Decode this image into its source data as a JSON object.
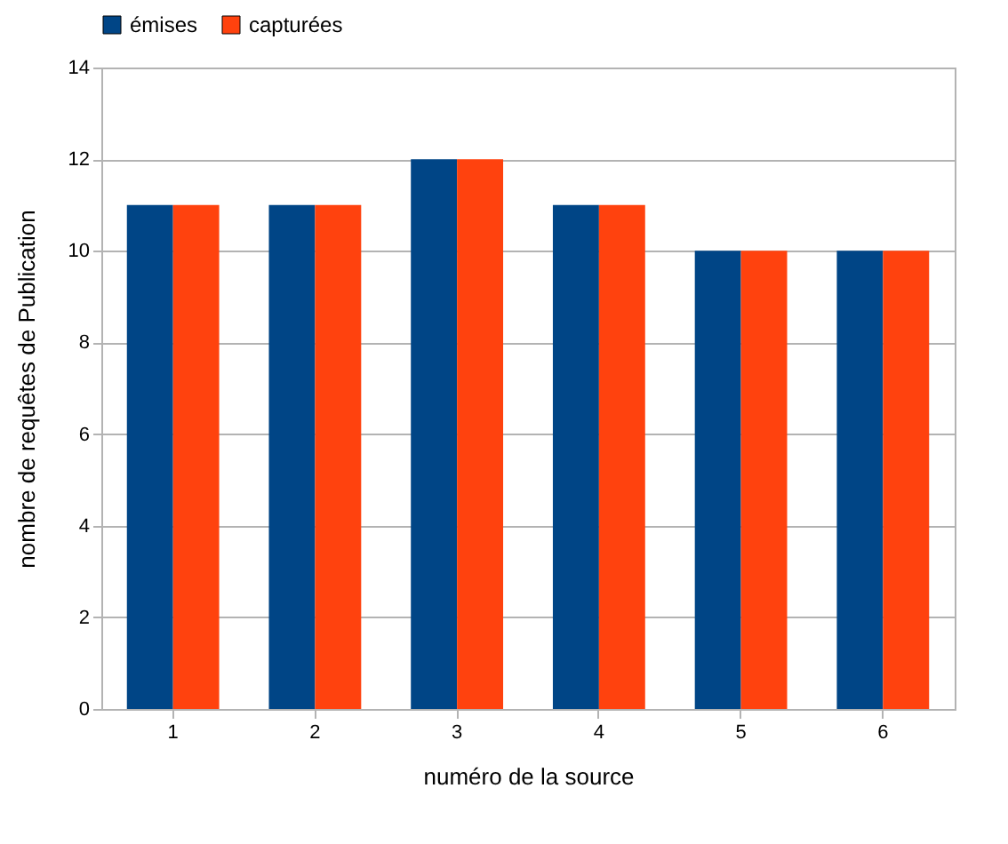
{
  "chart_data": {
    "type": "bar",
    "xlabel": "numéro de la source",
    "ylabel": "nombre de requêtes de Publication",
    "categories": [
      "1",
      "2",
      "3",
      "4",
      "5",
      "6"
    ],
    "series": [
      {
        "name": "émises",
        "color": "#004586",
        "values": [
          11,
          11,
          12,
          11,
          10,
          10
        ]
      },
      {
        "name": "capturées",
        "color": "#ff420e",
        "values": [
          11,
          11,
          12,
          11,
          10,
          10
        ]
      }
    ],
    "ylim": [
      0,
      14
    ],
    "yticks": [
      0,
      2,
      4,
      6,
      8,
      10,
      12,
      14
    ],
    "grid": "y",
    "legend": "top"
  }
}
